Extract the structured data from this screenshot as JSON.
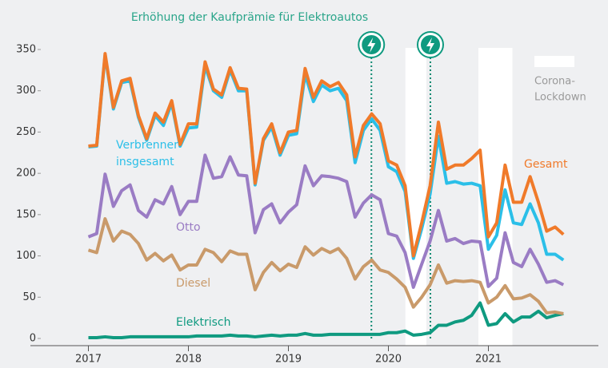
{
  "chart_data": {
    "type": "line",
    "title": "Erhöhung der Kaufprämie für Elektroautos",
    "x": [
      2017.0,
      2017.083,
      2017.167,
      2017.25,
      2017.333,
      2017.417,
      2017.5,
      2017.583,
      2017.667,
      2017.75,
      2017.833,
      2017.917,
      2018.0,
      2018.083,
      2018.167,
      2018.25,
      2018.333,
      2018.417,
      2018.5,
      2018.583,
      2018.667,
      2018.75,
      2018.833,
      2018.917,
      2019.0,
      2019.083,
      2019.167,
      2019.25,
      2019.333,
      2019.417,
      2019.5,
      2019.583,
      2019.667,
      2019.75,
      2019.833,
      2019.917,
      2020.0,
      2020.083,
      2020.167,
      2020.25,
      2020.333,
      2020.417,
      2020.5,
      2020.583,
      2020.667,
      2020.75,
      2020.833,
      2020.917,
      2021.0,
      2021.083,
      2021.167,
      2021.25,
      2021.333,
      2021.417,
      2021.5,
      2021.583,
      2021.667,
      2021.75
    ],
    "xlim": [
      2016.42,
      2022.1
    ],
    "xticks": [
      2017,
      2018,
      2019,
      2020,
      2021
    ],
    "ylim": [
      0,
      350
    ],
    "yticks": [
      0,
      50,
      100,
      150,
      200,
      250,
      300,
      350
    ],
    "grid": false,
    "series": [
      {
        "name": "Gesamt",
        "color": "#f07a2a",
        "values": [
          233,
          234,
          345,
          280,
          312,
          315,
          270,
          242,
          273,
          262,
          288,
          235,
          260,
          260,
          335,
          302,
          295,
          328,
          303,
          302,
          188,
          242,
          260,
          225,
          250,
          252,
          327,
          292,
          312,
          305,
          310,
          295,
          220,
          258,
          272,
          260,
          215,
          210,
          185,
          100,
          140,
          185,
          262,
          205,
          210,
          210,
          218,
          228,
          123,
          140,
          210,
          165,
          165,
          196,
          165,
          130,
          135,
          126
        ]
      },
      {
        "name": [
          "Verbrenner",
          "insgesamt"
        ],
        "color": "#2bbfe8",
        "values": [
          232,
          233,
          343,
          278,
          310,
          312,
          268,
          240,
          270,
          258,
          285,
          233,
          255,
          256,
          330,
          300,
          292,
          325,
          300,
          300,
          186,
          240,
          256,
          222,
          246,
          248,
          320,
          287,
          307,
          300,
          303,
          288,
          213,
          252,
          266,
          252,
          208,
          202,
          178,
          97,
          133,
          175,
          245,
          188,
          190,
          187,
          188,
          185,
          108,
          125,
          180,
          140,
          138,
          163,
          140,
          102,
          102,
          95
        ]
      },
      {
        "name": "Otto",
        "color": "#9a7cc4",
        "values": [
          123,
          127,
          199,
          160,
          179,
          186,
          155,
          147,
          168,
          163,
          184,
          150,
          166,
          166,
          222,
          194,
          196,
          220,
          198,
          197,
          128,
          156,
          163,
          140,
          153,
          162,
          209,
          185,
          197,
          196,
          194,
          190,
          147,
          164,
          174,
          168,
          127,
          124,
          104,
          62,
          90,
          118,
          155,
          118,
          121,
          115,
          118,
          117,
          63,
          73,
          128,
          92,
          87,
          108,
          90,
          68,
          70,
          65
        ]
      },
      {
        "name": "Diesel",
        "color": "#c99a6a",
        "values": [
          107,
          104,
          145,
          118,
          130,
          126,
          115,
          95,
          103,
          94,
          101,
          83,
          89,
          89,
          108,
          104,
          93,
          106,
          102,
          102,
          59,
          80,
          92,
          82,
          90,
          86,
          111,
          101,
          109,
          104,
          109,
          97,
          72,
          87,
          95,
          83,
          80,
          72,
          62,
          38,
          50,
          65,
          89,
          67,
          70,
          69,
          70,
          68,
          43,
          50,
          64,
          48,
          49,
          53,
          45,
          31,
          32,
          30
        ]
      },
      {
        "name": "Elektrisch",
        "color": "#0f9a80",
        "values": [
          1,
          1,
          2,
          1,
          1,
          2,
          2,
          2,
          2,
          2,
          2,
          2,
          2,
          3,
          3,
          3,
          3,
          4,
          3,
          3,
          2,
          3,
          4,
          3,
          4,
          4,
          6,
          4,
          4,
          5,
          5,
          5,
          5,
          5,
          5,
          5,
          7,
          7,
          9,
          4,
          5,
          7,
          16,
          16,
          20,
          22,
          28,
          43,
          16,
          18,
          30,
          20,
          26,
          26,
          33,
          25,
          28,
          30
        ]
      }
    ],
    "lockdown_label": [
      "Corona-",
      "Lockdown"
    ],
    "lockdowns": [
      [
        2020.17,
        2020.38
      ],
      [
        2020.9,
        2021.24
      ]
    ],
    "subsidy_dates": [
      2019.83,
      2020.42
    ]
  }
}
